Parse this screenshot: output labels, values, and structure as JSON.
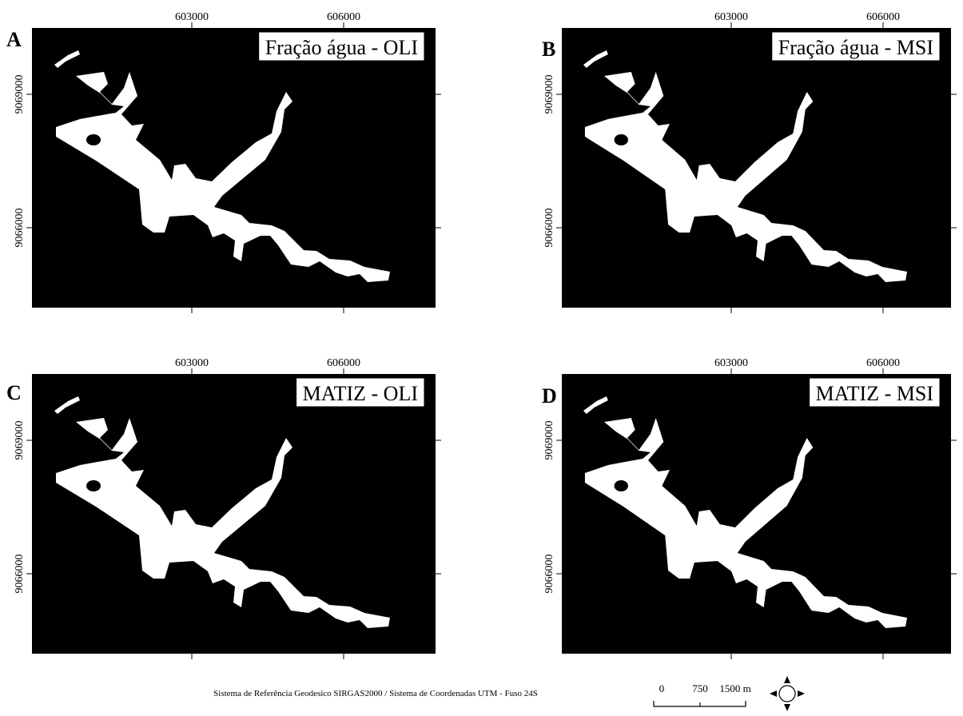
{
  "panels": [
    {
      "letter": "A",
      "title": "Fração água - OLI",
      "x_labels": [
        603000,
        606000
      ],
      "y_labels": [
        9069000,
        9066000
      ]
    },
    {
      "letter": "B",
      "title": "Fração água - MSI",
      "x_labels": [
        603000,
        606000
      ],
      "y_labels": [
        9069000,
        9066000
      ]
    },
    {
      "letter": "C",
      "title": "MATIZ - OLI",
      "x_labels": [
        603000,
        606000
      ],
      "y_labels": [
        9069000,
        9066000
      ]
    },
    {
      "letter": "D",
      "title": "MATIZ - MSI",
      "x_labels": [
        603000,
        606000
      ],
      "y_labels": [
        9069000,
        9066000
      ]
    }
  ],
  "footer": "Sistema de Referência Geodesico SIRGAS2000 / Sistema de Coordenadas UTM - Fuso 24S",
  "scale_bar": {
    "labels": [
      "0",
      "750",
      "1500 m"
    ]
  }
}
